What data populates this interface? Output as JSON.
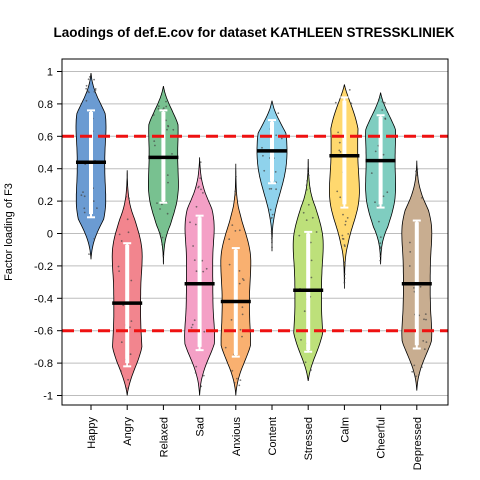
{
  "chart_data": {
    "type": "violin",
    "title": "Laodings of def.E.cov for dataset KATHLEEN STRESSKLINIEK",
    "xlabel": "",
    "ylabel": "Factor loading of F3",
    "ylim": [
      -1.05,
      1.05
    ],
    "yticks": [
      -1,
      -0.8,
      -0.6,
      -0.4,
      -0.2,
      0,
      0.2,
      0.4,
      0.6,
      0.8,
      1
    ],
    "grid": "horizontal",
    "reference_lines": [
      0.6,
      -0.6
    ],
    "reference_line_color": "#ee1111",
    "categories": [
      "Happy",
      "Angry",
      "Relaxed",
      "Sad",
      "Anxious",
      "Content",
      "Stressed",
      "Calm",
      "Cheerful",
      "Depressed"
    ],
    "series": [
      {
        "color": "#6b9bd2",
        "min": -0.16,
        "max": 0.99,
        "median": 0.44,
        "q1": 0.12,
        "q3": 0.75,
        "whisker_low": 0.1,
        "whisker_high": 0.76
      },
      {
        "color": "#f2858e",
        "min": -1.0,
        "max": 0.39,
        "median": -0.43,
        "q1": -0.8,
        "q3": -0.07,
        "whisker_low": -0.82,
        "whisker_high": -0.06
      },
      {
        "color": "#78c190",
        "min": -0.19,
        "max": 0.91,
        "median": 0.47,
        "q1": 0.2,
        "q3": 0.75,
        "whisker_low": 0.19,
        "whisker_high": 0.76
      },
      {
        "color": "#f4a0c6",
        "min": -1.0,
        "max": 0.47,
        "median": -0.31,
        "q1": -0.7,
        "q3": 0.1,
        "whisker_low": -0.72,
        "whisker_high": 0.11
      },
      {
        "color": "#f9b070",
        "min": -1.0,
        "max": 0.43,
        "median": -0.42,
        "q1": -0.75,
        "q3": -0.1,
        "whisker_low": -0.76,
        "whisker_high": -0.09
      },
      {
        "color": "#8fd2ec",
        "min": -0.11,
        "max": 0.82,
        "median": 0.51,
        "q1": 0.32,
        "q3": 0.69,
        "whisker_low": 0.31,
        "whisker_high": 0.7
      },
      {
        "color": "#bde07a",
        "min": -0.91,
        "max": 0.46,
        "median": -0.35,
        "q1": -0.72,
        "q3": 0.0,
        "whisker_low": -0.73,
        "whisker_high": 0.01
      },
      {
        "color": "#ffd86e",
        "min": -0.34,
        "max": 0.92,
        "median": 0.48,
        "q1": 0.18,
        "q3": 0.82,
        "whisker_low": 0.16,
        "whisker_high": 0.84
      },
      {
        "color": "#7fcdc0",
        "min": -0.19,
        "max": 0.87,
        "median": 0.45,
        "q1": 0.18,
        "q3": 0.72,
        "whisker_low": 0.16,
        "whisker_high": 0.73
      },
      {
        "color": "#c8ad90",
        "min": -0.97,
        "max": 0.45,
        "median": -0.31,
        "q1": -0.69,
        "q3": 0.07,
        "whisker_low": -0.71,
        "whisker_high": 0.08
      }
    ]
  }
}
